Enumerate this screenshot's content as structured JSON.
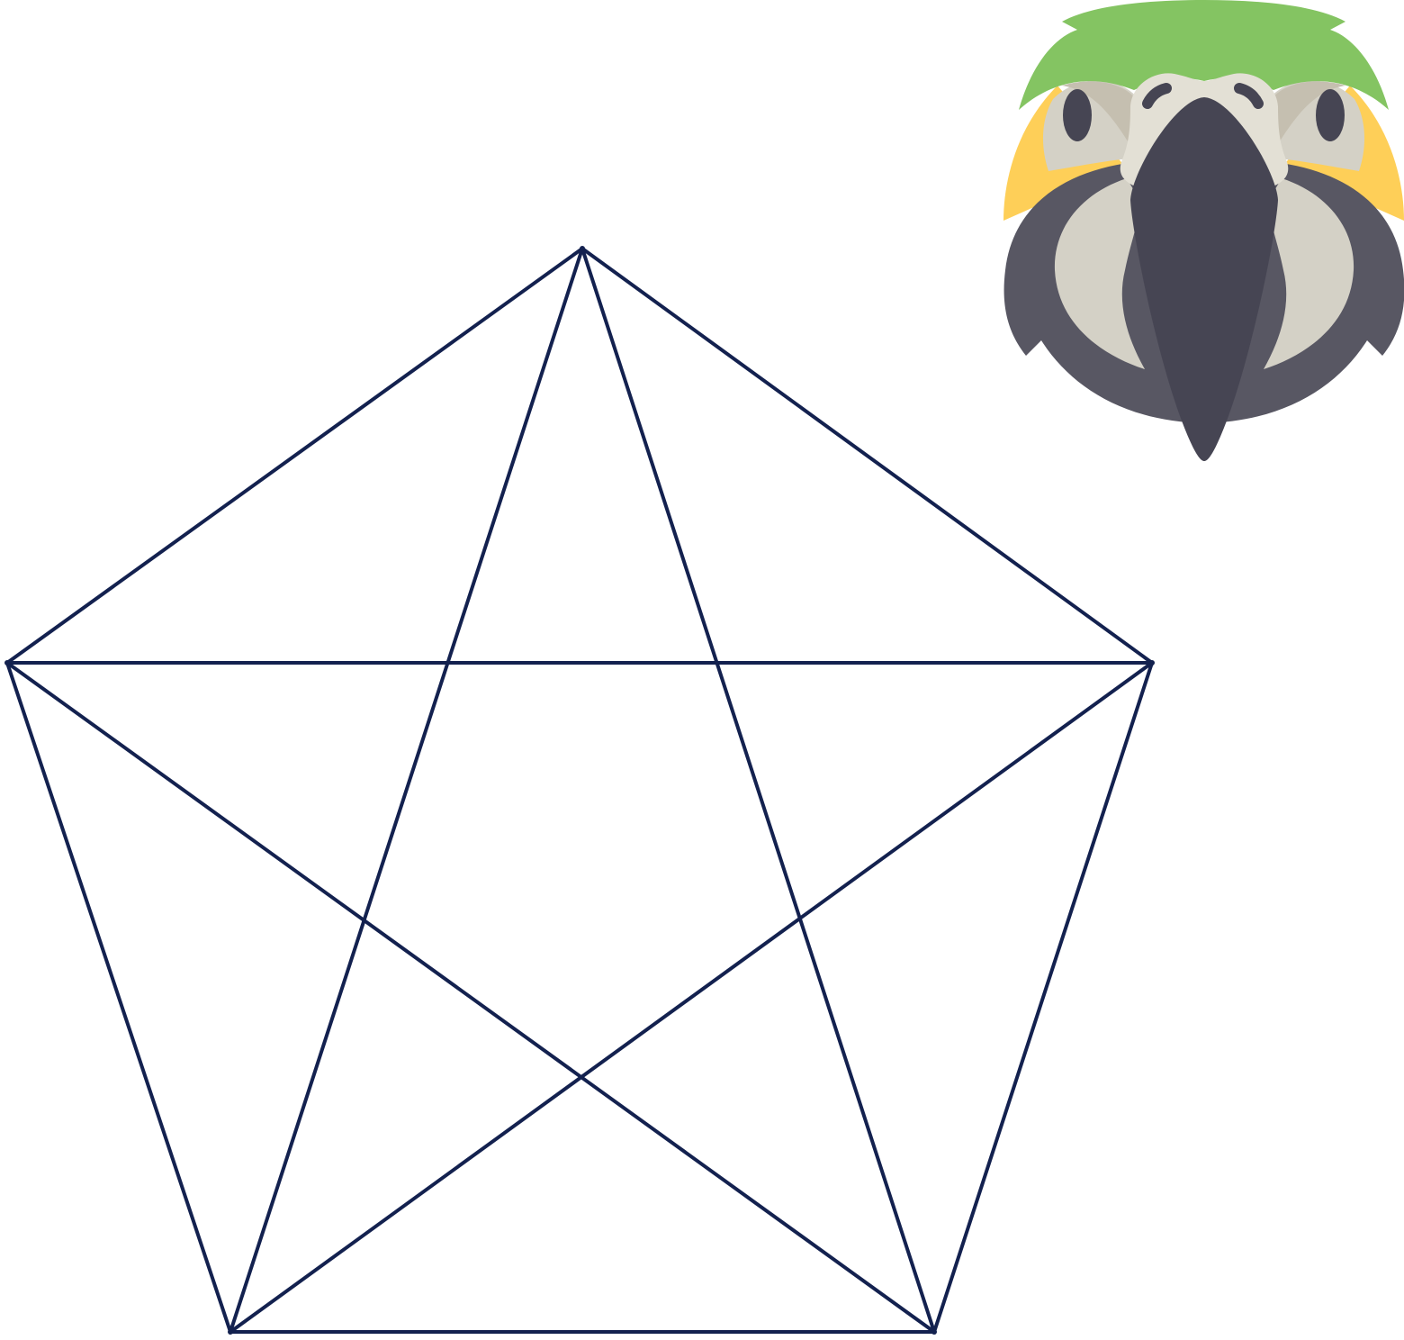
{
  "diagram": {
    "type": "complete-graph-pentagon",
    "vertex_count": 5,
    "edge_count": 10,
    "vertices": [
      "top",
      "left",
      "right",
      "bottom-left",
      "bottom-right"
    ],
    "edges": [
      [
        "top",
        "left"
      ],
      [
        "top",
        "right"
      ],
      [
        "left",
        "right"
      ],
      [
        "left",
        "bottom-left"
      ],
      [
        "right",
        "bottom-right"
      ],
      [
        "bottom-left",
        "bottom-right"
      ],
      [
        "top",
        "bottom-left"
      ],
      [
        "top",
        "bottom-right"
      ],
      [
        "left",
        "bottom-right"
      ],
      [
        "right",
        "bottom-left"
      ]
    ],
    "line_color": "#13214f"
  },
  "illustration": {
    "subject": "parrot-head-icon",
    "colors": {
      "crest": "#84c462",
      "cheeks": "#fecf58",
      "face_patch": "#c5bfb0",
      "face_light": "#d4d1c6",
      "beak_upper": "#e3e0d5",
      "beak": "#464553",
      "body": "#585763",
      "chest": "#d4d1c6"
    }
  }
}
